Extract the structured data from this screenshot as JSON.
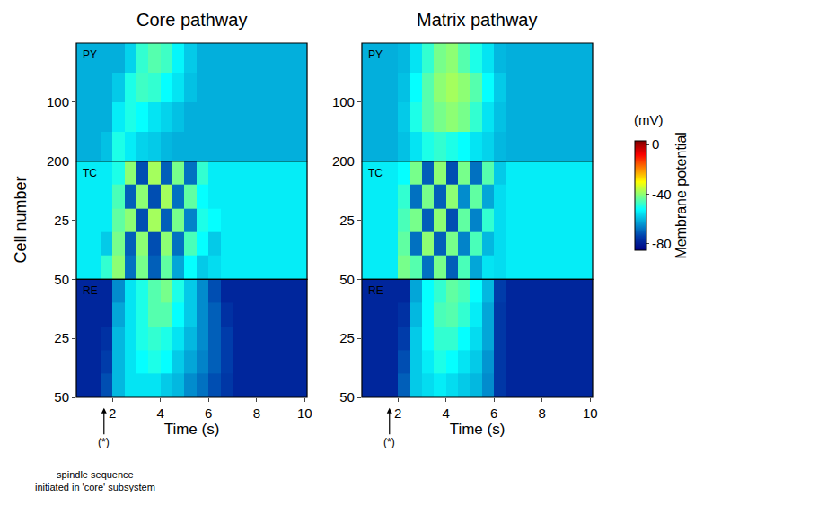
{
  "chart_data": {
    "type": "heatmap",
    "y_title": "Cell number",
    "x_title": "Time (s)",
    "xlim": [
      0.5,
      10.1
    ],
    "xticks": [
      2,
      4,
      6,
      8,
      10
    ],
    "time_edges": [
      0.5,
      1,
      1.5,
      2,
      2.5,
      3,
      3.5,
      4,
      4.5,
      5,
      5.5,
      6,
      6.5,
      7,
      7.5,
      8,
      8.5,
      9,
      9.5,
      10,
      10.1
    ],
    "colorbar": {
      "title": "Membrane potential",
      "unit": "(mV)",
      "range": [
        -85,
        3
      ],
      "ticks": [
        0,
        -40,
        -80
      ]
    },
    "panels": [
      {
        "title": "Core pathway",
        "marker_label": "(*)",
        "marker_time": 1.65,
        "note": [
          "spindle sequence",
          "initiated in 'core' subsystem"
        ],
        "rows": [
          {
            "name": "PY",
            "cell_edges": [
              0,
              50,
              100,
              150,
              200
            ],
            "ylim": [
              0,
              200
            ],
            "yticks": [
              100,
              200
            ],
            "cells": [
              [
                -61,
                -61,
                -61,
                -61,
                -57,
                -48,
                -45,
                -47,
                -53,
                -58,
                -61,
                -61,
                -61,
                -61,
                -61,
                -61,
                -61,
                -61,
                -61,
                -61
              ],
              [
                -61,
                -61,
                -61,
                -58,
                -50,
                -47,
                -48,
                -52,
                -55,
                -59,
                -61,
                -61,
                -61,
                -61,
                -61,
                -61,
                -61,
                -61,
                -61,
                -61
              ],
              [
                -61,
                -61,
                -61,
                -54,
                -50,
                -52,
                -55,
                -57,
                -59,
                -61,
                -61,
                -61,
                -61,
                -61,
                -61,
                -61,
                -61,
                -61,
                -61,
                -61
              ],
              [
                -61,
                -61,
                -59,
                -50,
                -54,
                -57,
                -58,
                -60,
                -61,
                -61,
                -61,
                -61,
                -61,
                -61,
                -61,
                -61,
                -61,
                -61,
                -61,
                -61
              ]
            ]
          },
          {
            "name": "TC",
            "cell_edges": [
              0,
              10,
              20,
              30,
              40,
              50
            ],
            "ylim": [
              0,
              50
            ],
            "yticks": [
              25,
              50
            ],
            "cells": [
              [
                -54,
                -54,
                -54,
                -50,
                -40,
                -72,
                -38,
                -70,
                -42,
                -68,
                -48,
                -54,
                -54,
                -54,
                -54,
                -54,
                -54,
                -54,
                -54,
                -54
              ],
              [
                -54,
                -54,
                -54,
                -46,
                -70,
                -40,
                -72,
                -38,
                -68,
                -44,
                -52,
                -54,
                -54,
                -54,
                -54,
                -54,
                -54,
                -54,
                -54,
                -54
              ],
              [
                -54,
                -54,
                -54,
                -44,
                -40,
                -72,
                -38,
                -70,
                -42,
                -66,
                -50,
                -52,
                -54,
                -54,
                -54,
                -54,
                -54,
                -54,
                -54,
                -54
              ],
              [
                -54,
                -54,
                -58,
                -42,
                -70,
                -40,
                -72,
                -40,
                -68,
                -46,
                -52,
                -58,
                -54,
                -54,
                -54,
                -54,
                -54,
                -54,
                -54,
                -54
              ],
              [
                -54,
                -54,
                -48,
                -40,
                -68,
                -42,
                -70,
                -44,
                -62,
                -52,
                -58,
                -56,
                -54,
                -54,
                -54,
                -54,
                -54,
                -54,
                -54,
                -54
              ]
            ]
          },
          {
            "name": "RE",
            "cell_edges": [
              0,
              10,
              20,
              30,
              40,
              50
            ],
            "ylim": [
              0,
              50
            ],
            "yticks": [
              25,
              50
            ],
            "cells": [
              [
                -78,
                -78,
                -78,
                -65,
                -55,
                -50,
                -45,
                -42,
                -50,
                -58,
                -65,
                -72,
                -78,
                -78,
                -78,
                -78,
                -78,
                -78,
                -78,
                -78
              ],
              [
                -78,
                -78,
                -78,
                -62,
                -55,
                -50,
                -45,
                -45,
                -52,
                -58,
                -65,
                -70,
                -76,
                -78,
                -78,
                -78,
                -78,
                -78,
                -78,
                -78
              ],
              [
                -78,
                -78,
                -76,
                -60,
                -55,
                -50,
                -48,
                -50,
                -55,
                -60,
                -65,
                -70,
                -74,
                -78,
                -78,
                -78,
                -78,
                -78,
                -78,
                -78
              ],
              [
                -78,
                -78,
                -74,
                -60,
                -55,
                -52,
                -50,
                -52,
                -58,
                -62,
                -66,
                -70,
                -74,
                -78,
                -78,
                -78,
                -78,
                -78,
                -78,
                -78
              ],
              [
                -78,
                -78,
                -72,
                -60,
                -55,
                -55,
                -55,
                -58,
                -60,
                -65,
                -68,
                -72,
                -75,
                -78,
                -78,
                -78,
                -78,
                -78,
                -78,
                -78
              ]
            ]
          }
        ]
      },
      {
        "title": "Matrix pathway",
        "marker_label": "(*)",
        "marker_time": 1.65,
        "rows": [
          {
            "name": "PY",
            "cell_edges": [
              0,
              50,
              100,
              150,
              200
            ],
            "ylim": [
              0,
              200
            ],
            "yticks": [
              100,
              200
            ],
            "cells": [
              [
                -61,
                -61,
                -61,
                -60,
                -55,
                -48,
                -42,
                -40,
                -45,
                -50,
                -55,
                -60,
                -61,
                -61,
                -61,
                -61,
                -61,
                -61,
                -61,
                -61
              ],
              [
                -61,
                -61,
                -61,
                -59,
                -52,
                -45,
                -40,
                -38,
                -40,
                -45,
                -52,
                -58,
                -61,
                -61,
                -61,
                -61,
                -61,
                -61,
                -61,
                -61
              ],
              [
                -61,
                -61,
                -61,
                -58,
                -50,
                -45,
                -42,
                -40,
                -42,
                -48,
                -55,
                -59,
                -61,
                -61,
                -61,
                -61,
                -61,
                -61,
                -61,
                -61
              ],
              [
                -61,
                -61,
                -61,
                -59,
                -55,
                -50,
                -48,
                -50,
                -52,
                -55,
                -57,
                -60,
                -61,
                -61,
                -61,
                -61,
                -61,
                -61,
                -61,
                -61
              ]
            ]
          },
          {
            "name": "TC",
            "cell_edges": [
              0,
              10,
              20,
              30,
              40,
              50
            ],
            "ylim": [
              0,
              50
            ],
            "yticks": [
              25,
              50
            ],
            "cells": [
              [
                -54,
                -54,
                -54,
                -52,
                -42,
                -70,
                -40,
                -72,
                -42,
                -68,
                -45,
                -58,
                -54,
                -54,
                -54,
                -54,
                -54,
                -54,
                -54,
                -54
              ],
              [
                -54,
                -54,
                -54,
                -48,
                -68,
                -42,
                -70,
                -40,
                -65,
                -44,
                -62,
                -56,
                -54,
                -54,
                -54,
                -54,
                -54,
                -54,
                -54,
                -54
              ],
              [
                -54,
                -54,
                -54,
                -46,
                -42,
                -70,
                -40,
                -72,
                -44,
                -66,
                -48,
                -56,
                -54,
                -54,
                -54,
                -54,
                -54,
                -54,
                -54,
                -54
              ],
              [
                -54,
                -54,
                -54,
                -44,
                -68,
                -40,
                -70,
                -42,
                -66,
                -46,
                -60,
                -56,
                -54,
                -54,
                -54,
                -54,
                -54,
                -54,
                -54,
                -54
              ],
              [
                -54,
                -54,
                -54,
                -42,
                -45,
                -68,
                -42,
                -70,
                -46,
                -62,
                -55,
                -56,
                -54,
                -54,
                -54,
                -54,
                -54,
                -54,
                -54,
                -54
              ]
            ]
          },
          {
            "name": "RE",
            "cell_edges": [
              0,
              10,
              20,
              30,
              40,
              50
            ],
            "ylim": [
              0,
              50
            ],
            "yticks": [
              25,
              50
            ],
            "cells": [
              [
                -78,
                -78,
                -78,
                -78,
                -62,
                -52,
                -48,
                -44,
                -46,
                -52,
                -60,
                -74,
                -78,
                -78,
                -78,
                -78,
                -78,
                -78,
                -78,
                -78
              ],
              [
                -78,
                -78,
                -78,
                -76,
                -60,
                -52,
                -46,
                -45,
                -48,
                -54,
                -62,
                -75,
                -78,
                -78,
                -78,
                -78,
                -78,
                -78,
                -78,
                -78
              ],
              [
                -78,
                -78,
                -78,
                -74,
                -58,
                -52,
                -48,
                -48,
                -52,
                -56,
                -62,
                -75,
                -78,
                -78,
                -78,
                -78,
                -78,
                -78,
                -78,
                -78
              ],
              [
                -78,
                -78,
                -78,
                -72,
                -58,
                -54,
                -50,
                -52,
                -55,
                -58,
                -64,
                -75,
                -78,
                -78,
                -78,
                -78,
                -78,
                -78,
                -78,
                -78
              ],
              [
                -78,
                -78,
                -78,
                -70,
                -58,
                -56,
                -54,
                -56,
                -58,
                -60,
                -65,
                -75,
                -78,
                -78,
                -78,
                -78,
                -78,
                -78,
                -78,
                -78
              ]
            ]
          }
        ]
      }
    ]
  }
}
